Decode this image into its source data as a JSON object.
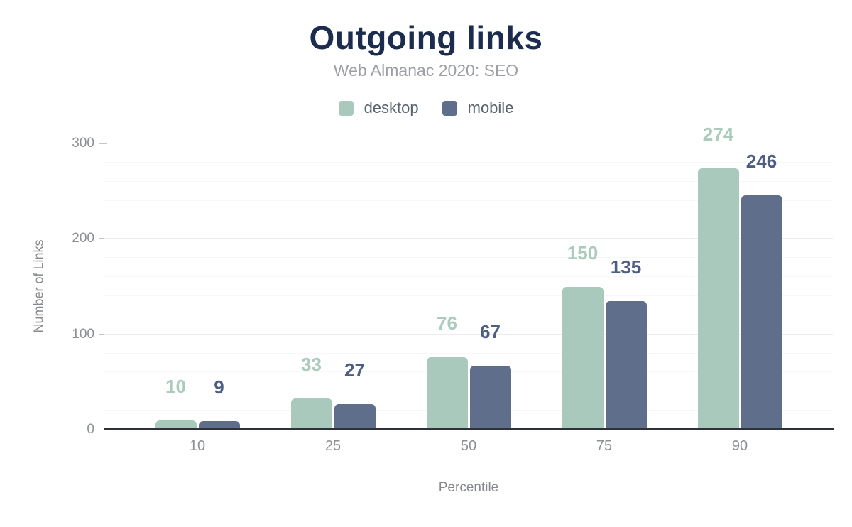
{
  "title": "Outgoing links",
  "subtitle": "Web Almanac 2020: SEO",
  "chart_data": {
    "type": "bar",
    "title": "Outgoing links",
    "subtitle": "Web Almanac 2020: SEO",
    "categories": [
      "10",
      "25",
      "50",
      "75",
      "90"
    ],
    "series": [
      {
        "name": "desktop",
        "values": [
          10,
          33,
          76,
          150,
          274
        ],
        "color": "#a8c9bb",
        "label_color": "#abccbc"
      },
      {
        "name": "mobile",
        "values": [
          9,
          27,
          67,
          135,
          246
        ],
        "color": "#5f6e8a",
        "label_color": "#4d5e84"
      }
    ],
    "xlabel": "Percentile",
    "ylabel": "Number of Links",
    "ylim": [
      0,
      300
    ],
    "yticks": [
      0,
      100,
      200,
      300
    ],
    "minor_gridline_step": 20,
    "grid": true,
    "legend_position": "top"
  },
  "colors": {
    "background": "#ffffff",
    "title": "#1b2c4e",
    "subtitle": "#9ca0a5",
    "legend_text": "#57636e",
    "axis_title": "#85888c",
    "tick_label": "#8d9093",
    "axis_line": "#2e3236",
    "gridline_major": "#ececec",
    "gridline_minor": "#f7f7f7",
    "tick_mark": "#c3c5c7"
  }
}
